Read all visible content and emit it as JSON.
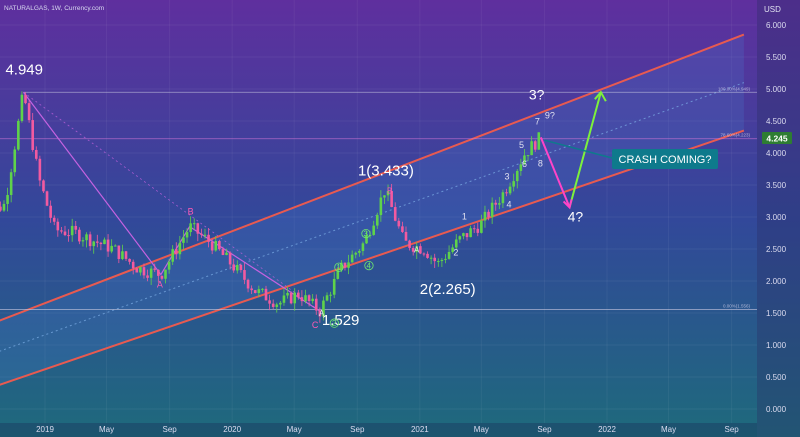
{
  "header": {
    "symbol_line": "NATURALGAS, 1W, Currency.com"
  },
  "axis": {
    "currency": "USD"
  },
  "price_badge": {
    "value": "4.245",
    "color": "#2e7d32"
  },
  "callout": {
    "text": "CRASH COMING?",
    "color": "#0e7a8c"
  },
  "colors": {
    "bg_top": "#5f2f9e",
    "bg_mid": "#32489a",
    "bg_bottom": "#1e6a7c",
    "channel_line": "#e85a50",
    "bull": "#5fd34a",
    "bear": "#f25aa0",
    "fib_pink": "#d878d8",
    "forecast_down": "#ff44c8",
    "forecast_up": "#7df23c"
  },
  "chart_data": {
    "type": "candlestick",
    "interval": "1W",
    "y_axis": {
      "min": 0,
      "max": 6.0,
      "ticks": [
        "0.000",
        "0.500",
        "1.000",
        "1.500",
        "2.000",
        "2.500",
        "3.000",
        "3.500",
        "4.000",
        "4.500",
        "5.000",
        "5.500",
        "6.000"
      ]
    },
    "x_axis": {
      "tick_labels": [
        {
          "label": "2019",
          "date": "2019-01-01"
        },
        {
          "label": "May",
          "date": "2019-05-01"
        },
        {
          "label": "Sep",
          "date": "2019-09-01"
        },
        {
          "label": "2020",
          "date": "2020-01-01"
        },
        {
          "label": "May",
          "date": "2020-05-01"
        },
        {
          "label": "Sep",
          "date": "2020-09-01"
        },
        {
          "label": "2021",
          "date": "2021-01-01"
        },
        {
          "label": "May",
          "date": "2021-05-01"
        },
        {
          "label": "Sep",
          "date": "2021-09-01"
        },
        {
          "label": "2022",
          "date": "2022-01-01"
        },
        {
          "label": "May",
          "date": "2022-05-01"
        },
        {
          "label": "Sep",
          "date": "2022-09-01"
        }
      ]
    },
    "price_path": [
      {
        "date": "2018-09-01",
        "price": 3.0
      },
      {
        "date": "2018-10-15",
        "price": 3.2
      },
      {
        "date": "2018-11-20",
        "price": 4.949
      },
      {
        "date": "2018-12-20",
        "price": 3.6
      },
      {
        "date": "2019-01-20",
        "price": 2.8
      },
      {
        "date": "2019-03-01",
        "price": 2.75
      },
      {
        "date": "2019-05-15",
        "price": 2.5
      },
      {
        "date": "2019-07-01",
        "price": 2.2
      },
      {
        "date": "2019-08-15",
        "price": 2.1
      },
      {
        "date": "2019-10-10",
        "price": 2.85
      },
      {
        "date": "2019-11-20",
        "price": 2.6
      },
      {
        "date": "2020-01-01",
        "price": 2.25
      },
      {
        "date": "2020-02-15",
        "price": 1.85
      },
      {
        "date": "2020-04-01",
        "price": 1.65
      },
      {
        "date": "2020-05-10",
        "price": 1.8
      },
      {
        "date": "2020-06-20",
        "price": 1.529
      },
      {
        "date": "2020-08-01",
        "price": 2.2
      },
      {
        "date": "2020-09-15",
        "price": 2.6
      },
      {
        "date": "2020-10-25",
        "price": 3.433
      },
      {
        "date": "2020-12-01",
        "price": 2.6
      },
      {
        "date": "2021-01-10",
        "price": 2.5
      },
      {
        "date": "2021-02-05",
        "price": 2.265
      },
      {
        "date": "2021-03-20",
        "price": 2.65
      },
      {
        "date": "2021-05-01",
        "price": 2.9
      },
      {
        "date": "2021-06-15",
        "price": 3.4
      },
      {
        "date": "2021-07-25",
        "price": 4.0
      },
      {
        "date": "2021-08-25",
        "price": 4.245
      }
    ],
    "channel_upper": [
      {
        "date": "2018-05-01",
        "price": 0.9
      },
      {
        "date": "2022-09-25",
        "price": 5.85
      }
    ],
    "channel_lower": [
      {
        "date": "2018-05-01",
        "price": -0.05
      },
      {
        "date": "2022-09-25",
        "price": 4.35
      }
    ],
    "channel_mid": [
      {
        "date": "2018-05-01",
        "price": 0.45
      },
      {
        "date": "2022-09-25",
        "price": 5.1
      }
    ],
    "fib_levels": [
      {
        "label": "100.00%(4.949)",
        "price": 4.949
      },
      {
        "label": "78.60%(4.223)",
        "price": 4.223
      },
      {
        "label": "0.00%(1.556)",
        "price": 1.556
      }
    ],
    "forecast": [
      {
        "label": "",
        "date": "2021-08-25",
        "price": 4.245
      },
      {
        "label": "4?",
        "date": "2021-10-20",
        "price": 3.15
      },
      {
        "label": "",
        "date": "2021-12-20",
        "price": 4.95
      }
    ],
    "wave_labels": [
      {
        "text": "4.949",
        "date": "2018-11-20",
        "price": 4.949
      },
      {
        "text": "1(3.433)",
        "date": "2020-10-25",
        "price": 3.433
      },
      {
        "text": "2(2.265)",
        "date": "2021-02-05",
        "price": 2.265
      },
      {
        "text": "1.529",
        "date": "2020-06-20",
        "price": 1.529
      },
      {
        "text": "3?",
        "date": "2021-08-25",
        "price": 4.245
      },
      {
        "text": "A",
        "date": "2019-08-15",
        "price": 2.1
      },
      {
        "text": "B",
        "date": "2019-10-10",
        "price": 2.85
      },
      {
        "text": "C",
        "date": "2020-06-20",
        "price": 1.529
      },
      {
        "text": "1",
        "date": "2021-03-20",
        "price": 2.65
      },
      {
        "text": "2",
        "date": "2021-05-01",
        "price": 2.9
      },
      {
        "text": "3",
        "date": "2021-06-15",
        "price": 3.4
      },
      {
        "text": "4",
        "date": "2021-06-15",
        "price": 3.4
      },
      {
        "text": "5",
        "date": "2021-07-25",
        "price": 4.0
      },
      {
        "text": "6",
        "date": "2021-07-25",
        "price": 4.0
      },
      {
        "text": "7",
        "date": "2021-08-25",
        "price": 4.245
      },
      {
        "text": "8",
        "date": "2021-08-25",
        "price": 4.245
      },
      {
        "text": "9?",
        "date": "2021-08-25",
        "price": 4.245
      },
      {
        "text": "1",
        "date": "2020-08-01",
        "price": 2.2
      },
      {
        "text": "2",
        "date": "2020-06-20",
        "price": 1.529
      },
      {
        "text": "3",
        "date": "2020-09-15",
        "price": 2.6
      },
      {
        "text": "4",
        "date": "2020-09-15",
        "price": 2.6
      },
      {
        "text": "A",
        "date": "2020-12-01",
        "price": 2.6
      },
      {
        "text": "B",
        "date": "2020-10-25",
        "price": 3.433
      },
      {
        "text": "A",
        "date": "2020-06-20",
        "price": 1.529
      }
    ]
  }
}
